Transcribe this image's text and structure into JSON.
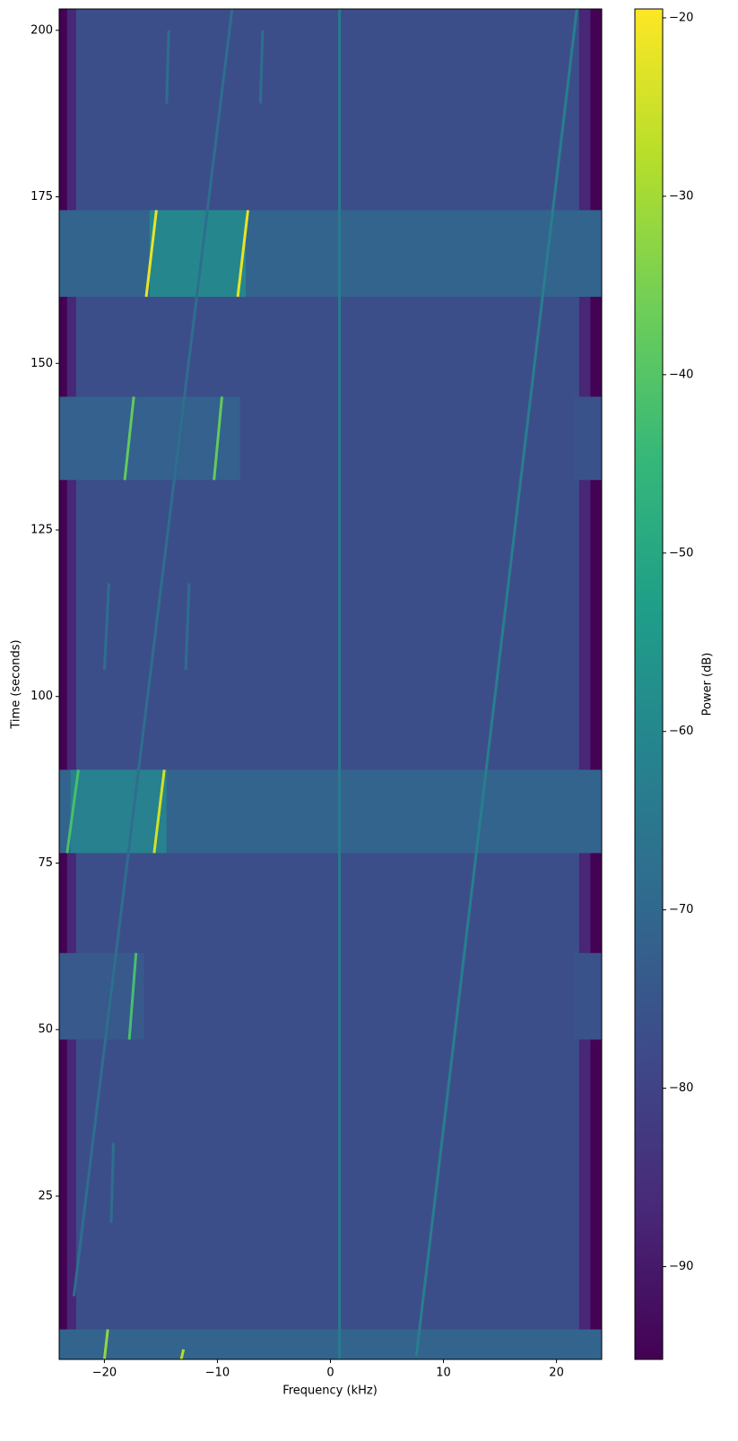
{
  "chart_data": {
    "type": "spectrogram",
    "x_label": "Frequency (kHz)",
    "y_label": "Time (seconds)",
    "colorbar_label": "Power (dB)",
    "xlim": [
      -24,
      24
    ],
    "ylim": [
      0.5,
      203.2
    ],
    "xticks": [
      {
        "value": -20,
        "label": "−20"
      },
      {
        "value": -10,
        "label": "−10"
      },
      0,
      10,
      20
    ],
    "yticks": [
      25,
      50,
      75,
      100,
      125,
      150,
      175,
      200
    ],
    "clim": [
      -95.2,
      -19.5
    ],
    "cticks": [
      {
        "value": -20,
        "label": "−20"
      },
      {
        "value": -30,
        "label": "−30"
      },
      {
        "value": -40,
        "label": "−40"
      },
      {
        "value": -50,
        "label": "−50"
      },
      {
        "value": -60,
        "label": "−60"
      },
      {
        "value": -70,
        "label": "−70"
      },
      {
        "value": -80,
        "label": "−80"
      },
      {
        "value": -90,
        "label": "−90"
      }
    ],
    "colormap": [
      "#440154",
      "#482878",
      "#3e4989",
      "#31688e",
      "#26828e",
      "#1f9e89",
      "#35b779",
      "#6ece58",
      "#b5de2b",
      "#fde725"
    ],
    "regions": [
      {
        "time": [
          0.5,
          203.2
        ],
        "freq": [
          -24,
          24
        ],
        "power": -95
      },
      {
        "time": [
          0.5,
          203.2
        ],
        "freq": [
          -23.3,
          23
        ],
        "power": -87
      },
      {
        "time": [
          0.5,
          203.2
        ],
        "freq": [
          -22.5,
          22
        ],
        "power": -77
      },
      {
        "time": [
          160,
          173
        ],
        "freq": [
          -24,
          24
        ],
        "power": -71
      },
      {
        "time": [
          160,
          173
        ],
        "freq": [
          -16,
          -7.5
        ],
        "power": -60
      },
      {
        "time": [
          132.5,
          145
        ],
        "freq": [
          -24,
          -8
        ],
        "power": -72
      },
      {
        "time": [
          132.5,
          145
        ],
        "freq": [
          21.5,
          24
        ],
        "power": -76
      },
      {
        "time": [
          76.5,
          89
        ],
        "freq": [
          -24,
          24
        ],
        "power": -71
      },
      {
        "time": [
          76.5,
          89
        ],
        "freq": [
          -23,
          -14.5
        ],
        "power": -62
      },
      {
        "time": [
          48.5,
          61.5
        ],
        "freq": [
          -24,
          -16.5
        ],
        "power": -74
      },
      {
        "time": [
          48.5,
          61.5
        ],
        "freq": [
          21.5,
          24
        ],
        "power": -76
      },
      {
        "time": [
          0.5,
          5
        ],
        "freq": [
          -24,
          24
        ],
        "power": -71
      }
    ],
    "tones": [
      {
        "time": [
          160,
          173
        ],
        "freq": [
          -16.3,
          -15.4
        ],
        "power": -22
      },
      {
        "time": [
          160,
          173
        ],
        "freq": [
          -8.2,
          -7.3
        ],
        "power": -22
      },
      {
        "time": [
          132.5,
          145
        ],
        "freq": [
          -18.2,
          -17.4
        ],
        "power": -38
      },
      {
        "time": [
          132.5,
          145
        ],
        "freq": [
          -10.3,
          -9.6
        ],
        "power": -38
      },
      {
        "time": [
          76.5,
          89
        ],
        "freq": [
          -23.3,
          -22.3
        ],
        "power": -42
      },
      {
        "time": [
          76.5,
          89
        ],
        "freq": [
          -15.6,
          -14.7
        ],
        "power": -25
      },
      {
        "time": [
          48.5,
          61.5
        ],
        "freq": [
          -17.8,
          -17.2
        ],
        "power": -42
      },
      {
        "time": [
          0.5,
          5
        ],
        "freq": [
          -20,
          -19.7
        ],
        "power": -32
      },
      {
        "time": [
          0.5,
          2
        ],
        "freq": [
          -13.2,
          -13
        ],
        "power": -28
      },
      {
        "time": [
          0.5,
          203.2
        ],
        "freq": [
          0.8,
          0.8
        ],
        "power": -64
      },
      {
        "time": [
          1,
          203.2
        ],
        "freq": [
          7.6,
          21.8
        ],
        "power": -63
      },
      {
        "time": [
          10,
          203.2
        ],
        "freq": [
          -22.7,
          -8.7
        ],
        "power": -68
      },
      {
        "time": [
          189,
          200
        ],
        "freq": [
          -14.5,
          -14.3
        ],
        "power": -68
      },
      {
        "time": [
          189,
          200
        ],
        "freq": [
          -6.2,
          -6
        ],
        "power": -68
      },
      {
        "time": [
          104,
          117
        ],
        "freq": [
          -20,
          -19.6
        ],
        "power": -68
      },
      {
        "time": [
          104,
          117
        ],
        "freq": [
          -12.8,
          -12.5
        ],
        "power": -68
      },
      {
        "time": [
          21,
          33
        ],
        "freq": [
          -19.4,
          -19.2
        ],
        "power": -68
      }
    ]
  }
}
